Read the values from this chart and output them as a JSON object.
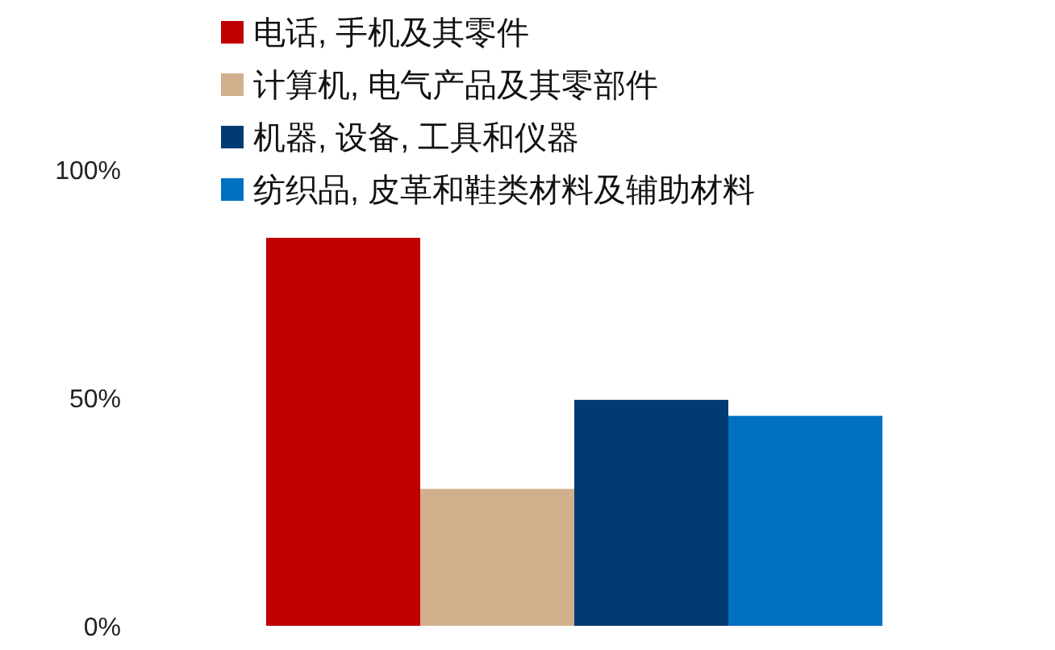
{
  "chart_data": {
    "type": "bar",
    "categories": [
      null
    ],
    "series": [
      {
        "name": "电话, 手机及其零件",
        "color": "#c00000",
        "values": [
          85
        ]
      },
      {
        "name": "计算机, 电气产品及其零部件",
        "color": "#d2b08e",
        "values": [
          30
        ]
      },
      {
        "name": "机器, 设备, 工具和仪器",
        "color": "#003b73",
        "values": [
          49.5
        ]
      },
      {
        "name": "纺织品, 皮革和鞋类材料及辅助材料",
        "color": "#0070c0",
        "values": [
          46
        ]
      }
    ],
    "ylim": [
      0,
      100
    ],
    "yticks": [
      {
        "value": 0,
        "label": "0%"
      },
      {
        "value": 50,
        "label": "50%"
      },
      {
        "value": 100,
        "label": "100%"
      }
    ],
    "legend": "top"
  }
}
